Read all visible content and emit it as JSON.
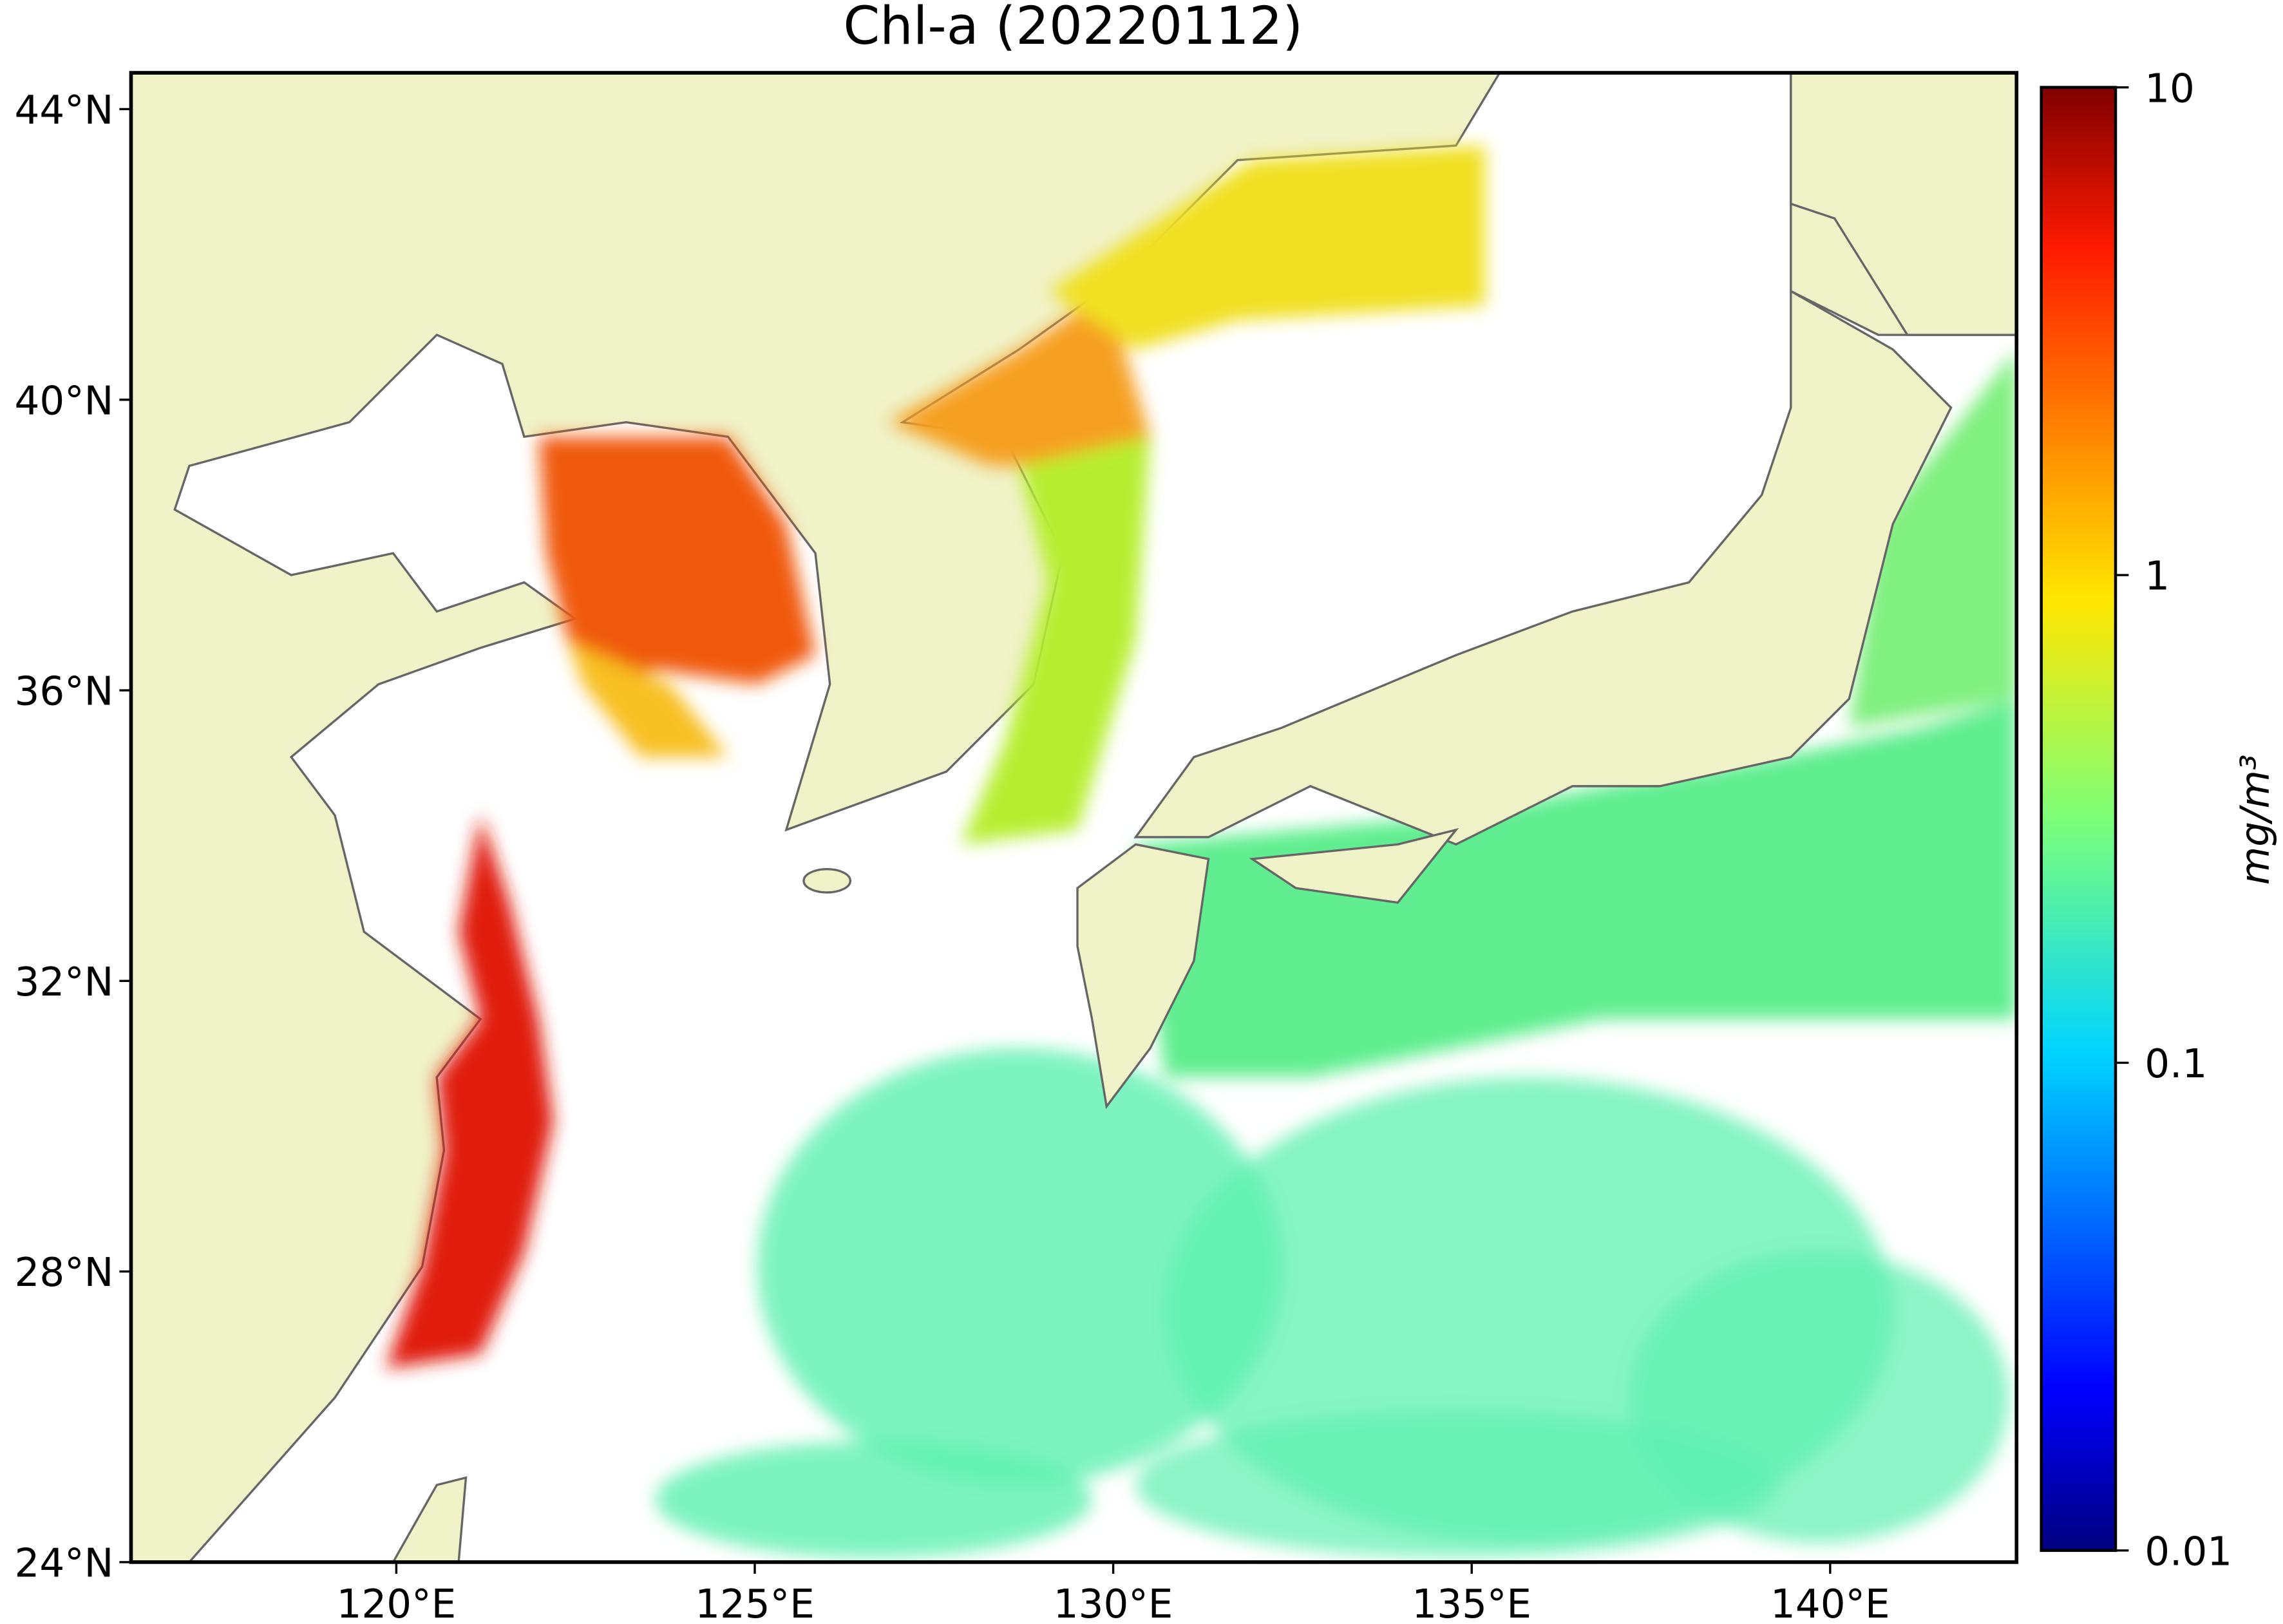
{
  "map": {
    "title": "Chl-a (20220112)",
    "xlim": [
      116.3,
      142.6
    ],
    "ylim": [
      24,
      44.5
    ],
    "xticks": [
      {
        "value": 120,
        "label": "120°E"
      },
      {
        "value": 125,
        "label": "125°E"
      },
      {
        "value": 130,
        "label": "130°E"
      },
      {
        "value": 135,
        "label": "135°E"
      },
      {
        "value": 140,
        "label": "140°E"
      }
    ],
    "yticks": [
      {
        "value": 24,
        "label": "24°N"
      },
      {
        "value": 28,
        "label": "28°N"
      },
      {
        "value": 32,
        "label": "32°N"
      },
      {
        "value": 36,
        "label": "36°N"
      },
      {
        "value": 40,
        "label": "40°N"
      },
      {
        "value": 44,
        "label": "44°N"
      }
    ],
    "colorbar": {
      "label": "mg/m³",
      "scale": "log",
      "lim": [
        0.01,
        10
      ],
      "ticks": [
        0.01,
        0.1,
        1,
        10
      ]
    }
  }
}
